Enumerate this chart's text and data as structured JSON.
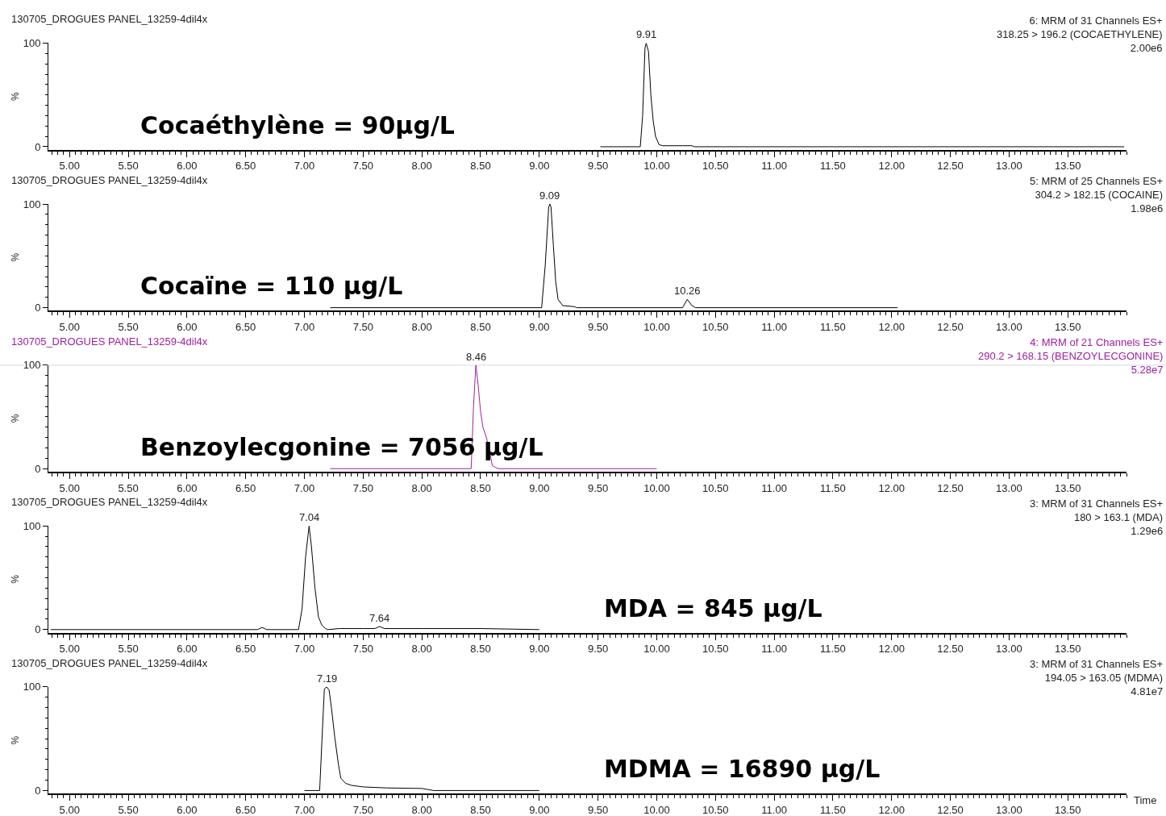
{
  "chart_data": [
    {
      "type": "line",
      "title": "130705_DROGUES PANEL_13259-4dil4x",
      "ylabel": "%",
      "xlim": [
        4.82,
        14.0
      ],
      "ylim": [
        -3,
        100
      ],
      "xticks": [
        {
          "value": 5,
          "label": "5.00"
        },
        {
          "value": 5.5,
          "label": "5.50"
        },
        {
          "value": 6,
          "label": "6.00"
        },
        {
          "value": 6.5,
          "label": "6.50"
        },
        {
          "value": 7,
          "label": "7.00"
        },
        {
          "value": 7.5,
          "label": "7.50"
        },
        {
          "value": 8,
          "label": "8.00"
        },
        {
          "value": 8.5,
          "label": "8.50"
        },
        {
          "value": 9,
          "label": "9.00"
        },
        {
          "value": 9.5,
          "label": "9.50"
        },
        {
          "value": 10,
          "label": "10.00"
        },
        {
          "value": 10.5,
          "label": "10.50"
        },
        {
          "value": 11,
          "label": "11.00"
        },
        {
          "value": 11.5,
          "label": "11.50"
        },
        {
          "value": 12,
          "label": "12.00"
        },
        {
          "value": 12.5,
          "label": "12.50"
        },
        {
          "value": 13,
          "label": "13.00"
        },
        {
          "value": 13.5,
          "label": "13.50"
        }
      ],
      "yticks": [
        0,
        100
      ],
      "series": [
        {
          "color": "#000000",
          "x": [
            9.52,
            9.86,
            9.88,
            9.9,
            9.91,
            9.93,
            9.95,
            9.97,
            9.99,
            10.02,
            10.05,
            10.1,
            10.3,
            10.32,
            13.98
          ],
          "values": [
            0,
            0,
            30,
            95,
            100,
            92,
            50,
            25,
            10,
            2,
            1,
            1,
            1,
            0,
            0
          ]
        }
      ],
      "annotations": [
        "6: MRM of 31 Channels ES+\n318.25 > 196.2 (COCAETHYLENE)\n2.00e6",
        "Cocaéthylène = 90µg/L",
        {
          "text": "9.91",
          "x": 9.91,
          "y": 100
        }
      ]
    },
    {
      "type": "line",
      "title": "130705_DROGUES PANEL_13259-4dil4x",
      "ylabel": "%",
      "xlim": [
        4.82,
        14.0
      ],
      "ylim": [
        -3,
        100
      ],
      "xticks": [
        {
          "value": 5,
          "label": "5.00"
        },
        {
          "value": 5.5,
          "label": "5.50"
        },
        {
          "value": 6,
          "label": "6.00"
        },
        {
          "value": 6.5,
          "label": "6.50"
        },
        {
          "value": 7,
          "label": "7.00"
        },
        {
          "value": 7.5,
          "label": "7.50"
        },
        {
          "value": 8,
          "label": "8.00"
        },
        {
          "value": 8.5,
          "label": "8.50"
        },
        {
          "value": 9,
          "label": "9.00"
        },
        {
          "value": 9.5,
          "label": "9.50"
        },
        {
          "value": 10,
          "label": "10.00"
        },
        {
          "value": 10.5,
          "label": "10.50"
        },
        {
          "value": 11,
          "label": "11.00"
        },
        {
          "value": 11.5,
          "label": "11.50"
        },
        {
          "value": 12,
          "label": "12.00"
        },
        {
          "value": 12.5,
          "label": "12.50"
        },
        {
          "value": 13,
          "label": "13.00"
        },
        {
          "value": 13.5,
          "label": "13.50"
        }
      ],
      "yticks": [
        0,
        100
      ],
      "series": [
        {
          "color": "#000000",
          "x": [
            7.22,
            9.02,
            9.05,
            9.08,
            9.09,
            9.1,
            9.12,
            9.14,
            9.16,
            9.2,
            9.3,
            9.32,
            10.22,
            10.26,
            10.3,
            10.33,
            12.05
          ],
          "values": [
            0,
            0,
            40,
            97,
            100,
            97,
            60,
            25,
            8,
            2,
            1,
            0,
            0,
            8,
            2,
            0,
            0
          ]
        }
      ],
      "annotations": [
        "5: MRM of 25 Channels ES+\n304.2 > 182.15 (COCAINE)\n1.98e6",
        "Cocaïne = 110 µg/L",
        {
          "text": "9.09",
          "x": 9.09,
          "y": 100
        },
        {
          "text": "10.26",
          "x": 10.26,
          "y": 8
        }
      ]
    },
    {
      "type": "line",
      "title": "130705_DROGUES PANEL_13259-4dil4x",
      "ylabel": "%",
      "xlim": [
        4.82,
        14.0
      ],
      "ylim": [
        -3,
        100
      ],
      "xticks": [
        {
          "value": 5,
          "label": "5.00"
        },
        {
          "value": 5.5,
          "label": "5.50"
        },
        {
          "value": 6,
          "label": "6.00"
        },
        {
          "value": 6.5,
          "label": "6.50"
        },
        {
          "value": 7,
          "label": "7.00"
        },
        {
          "value": 7.5,
          "label": "7.50"
        },
        {
          "value": 8,
          "label": "8.00"
        },
        {
          "value": 8.5,
          "label": "8.50"
        },
        {
          "value": 9,
          "label": "9.00"
        },
        {
          "value": 9.5,
          "label": "9.50"
        },
        {
          "value": 10,
          "label": "10.00"
        },
        {
          "value": 10.5,
          "label": "10.50"
        },
        {
          "value": 11,
          "label": "11.00"
        },
        {
          "value": 11.5,
          "label": "11.50"
        },
        {
          "value": 12,
          "label": "12.00"
        },
        {
          "value": 12.5,
          "label": "12.50"
        },
        {
          "value": 13,
          "label": "13.00"
        },
        {
          "value": 13.5,
          "label": "13.50"
        }
      ],
      "yticks": [
        0,
        100
      ],
      "ref_lines": [
        {
          "axis": "y",
          "value": 100,
          "color": "#8094b4"
        }
      ],
      "series": [
        {
          "color": "#a020a0",
          "x": [
            7.22,
            8.42,
            8.44,
            8.46,
            8.48,
            8.5,
            8.52,
            8.55,
            8.58,
            8.6,
            8.63,
            8.65,
            10.0
          ],
          "values": [
            0,
            0,
            60,
            100,
            80,
            55,
            40,
            30,
            15,
            3,
            1,
            0,
            0
          ]
        }
      ],
      "annotations": [
        "4: MRM of 21 Channels ES+\n290.2 > 168.15 (BENZOYLECGONINE)\n5.28e7",
        "Benzoylecgonine = 7056 µg/L",
        {
          "text": "8.46",
          "x": 8.46,
          "y": 100
        }
      ]
    },
    {
      "type": "line",
      "title": "130705_DROGUES PANEL_13259-4dil4x",
      "ylabel": "%",
      "xlim": [
        4.82,
        14.0
      ],
      "ylim": [
        -3,
        100
      ],
      "xticks": [
        {
          "value": 5,
          "label": "5.00"
        },
        {
          "value": 5.5,
          "label": "5.50"
        },
        {
          "value": 6,
          "label": "6.00"
        },
        {
          "value": 6.5,
          "label": "6.50"
        },
        {
          "value": 7,
          "label": "7.00"
        },
        {
          "value": 7.5,
          "label": "7.50"
        },
        {
          "value": 8,
          "label": "8.00"
        },
        {
          "value": 8.5,
          "label": "8.50"
        },
        {
          "value": 9,
          "label": "9.00"
        },
        {
          "value": 9.5,
          "label": "9.50"
        },
        {
          "value": 10,
          "label": "10.00"
        },
        {
          "value": 10.5,
          "label": "10.50"
        },
        {
          "value": 11,
          "label": "11.00"
        },
        {
          "value": 11.5,
          "label": "11.50"
        },
        {
          "value": 12,
          "label": "12.00"
        },
        {
          "value": 12.5,
          "label": "12.50"
        },
        {
          "value": 13,
          "label": "13.00"
        },
        {
          "value": 13.5,
          "label": "13.50"
        }
      ],
      "yticks": [
        0,
        100
      ],
      "series": [
        {
          "color": "#000000",
          "x": [
            4.84,
            6.6,
            6.64,
            6.68,
            6.95,
            6.98,
            7.01,
            7.04,
            7.06,
            7.09,
            7.12,
            7.15,
            7.18,
            7.2,
            7.3,
            7.5,
            7.6,
            7.64,
            7.68,
            7.8,
            8.0,
            8.5,
            9.0
          ],
          "values": [
            0,
            0,
            2,
            0,
            0,
            20,
            70,
            100,
            80,
            40,
            12,
            4,
            1,
            0,
            1,
            1,
            1,
            3,
            1,
            1,
            1,
            1,
            0
          ]
        }
      ],
      "annotations": [
        "3: MRM of 31 Channels ES+\n180 > 163.1 (MDA)\n1.29e6",
        "MDA = 845 µg/L",
        {
          "text": "7.04",
          "x": 7.04,
          "y": 100
        },
        {
          "text": "7.64",
          "x": 7.64,
          "y": 3
        }
      ]
    },
    {
      "type": "line",
      "title": "130705_DROGUES PANEL_13259-4dil4x",
      "ylabel": "%",
      "xlabel": "Time",
      "xlim": [
        4.82,
        14.0
      ],
      "ylim": [
        -3,
        100
      ],
      "xticks": [
        {
          "value": 5,
          "label": "5.00"
        },
        {
          "value": 5.5,
          "label": "5.50"
        },
        {
          "value": 6,
          "label": "6.00"
        },
        {
          "value": 6.5,
          "label": "6.50"
        },
        {
          "value": 7,
          "label": "7.00"
        },
        {
          "value": 7.5,
          "label": "7.50"
        },
        {
          "value": 8,
          "label": "8.00"
        },
        {
          "value": 8.5,
          "label": "8.50"
        },
        {
          "value": 9,
          "label": "9.00"
        },
        {
          "value": 9.5,
          "label": "9.50"
        },
        {
          "value": 10,
          "label": "10.00"
        },
        {
          "value": 10.5,
          "label": "10.50"
        },
        {
          "value": 11,
          "label": "11.00"
        },
        {
          "value": 11.5,
          "label": "11.50"
        },
        {
          "value": 12,
          "label": "12.00"
        },
        {
          "value": 12.5,
          "label": "12.50"
        },
        {
          "value": 13,
          "label": "13.00"
        },
        {
          "value": 13.5,
          "label": "13.50"
        }
      ],
      "yticks": [
        0,
        100
      ],
      "series": [
        {
          "color": "#000000",
          "x": [
            7.0,
            7.13,
            7.15,
            7.17,
            7.19,
            7.21,
            7.23,
            7.26,
            7.29,
            7.31,
            7.35,
            7.4,
            7.5,
            7.7,
            8.0,
            8.05,
            8.1,
            9.0
          ],
          "values": [
            0,
            0,
            50,
            98,
            100,
            97,
            80,
            50,
            25,
            12,
            7,
            5,
            3.5,
            2.5,
            2,
            1,
            0,
            0
          ]
        }
      ],
      "annotations": [
        "3: MRM of 31 Channels ES+\n194.05 > 163.05 (MDMA)\n4.81e7",
        "MDMA = 16890 µg/L",
        {
          "text": "7.19",
          "x": 7.19,
          "y": 100
        }
      ]
    }
  ]
}
